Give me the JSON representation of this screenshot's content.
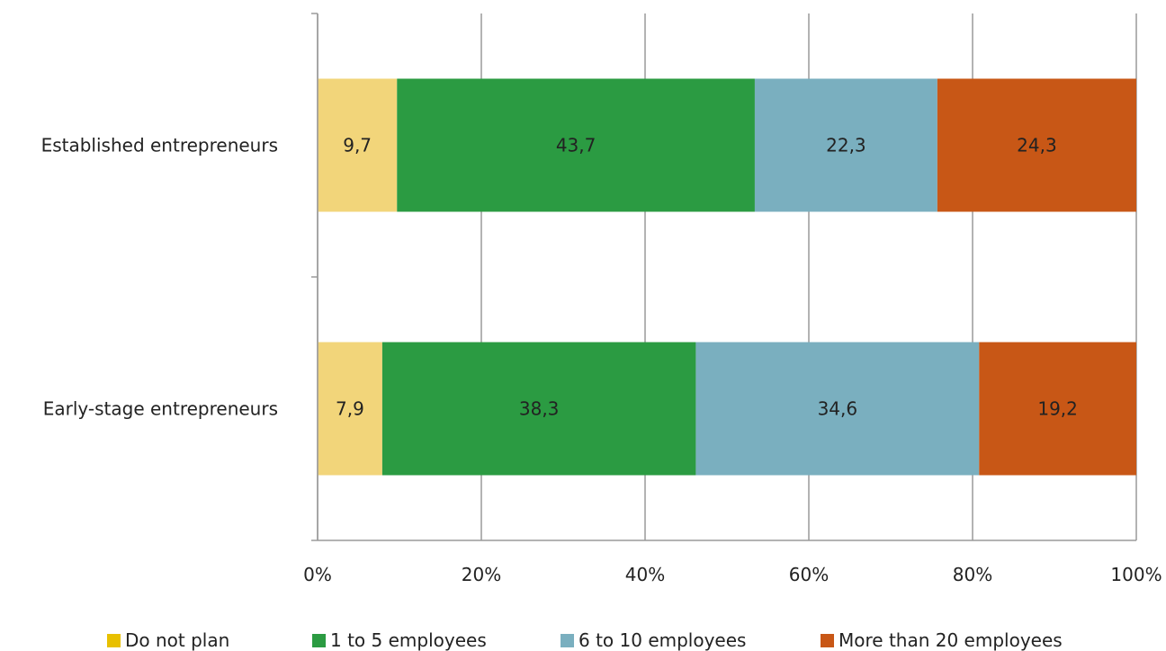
{
  "chart_data": {
    "type": "bar",
    "orientation": "horizontal",
    "stacked": true,
    "categories": [
      "Established entrepreneurs",
      "Early-stage entrepreneurs"
    ],
    "series": [
      {
        "name": "Do not plan",
        "values": [
          9.7,
          7.9
        ],
        "labels": [
          "9,7",
          "7,9"
        ],
        "color": "#f2d57a",
        "legend_color": "#e8c000"
      },
      {
        "name": "1 to 5 employees",
        "values": [
          43.7,
          38.3
        ],
        "labels": [
          "43,7",
          "38,3"
        ],
        "color": "#2b9b42",
        "legend_color": "#2b9b42"
      },
      {
        "name": "6 to 10 employees",
        "values": [
          22.3,
          34.6
        ],
        "labels": [
          "22,3",
          "34,6"
        ],
        "color": "#7aafbf",
        "legend_color": "#7aafbf"
      },
      {
        "name": "More than 20 employees",
        "values": [
          24.3,
          19.2
        ],
        "labels": [
          "24,3",
          "19,2"
        ],
        "color": "#c85716",
        "legend_color": "#c85716"
      }
    ],
    "x_ticks": [
      "0%",
      "20%",
      "40%",
      "60%",
      "80%",
      "100%"
    ],
    "xlim": [
      0,
      100
    ],
    "grid": true,
    "legend_position": "bottom"
  }
}
